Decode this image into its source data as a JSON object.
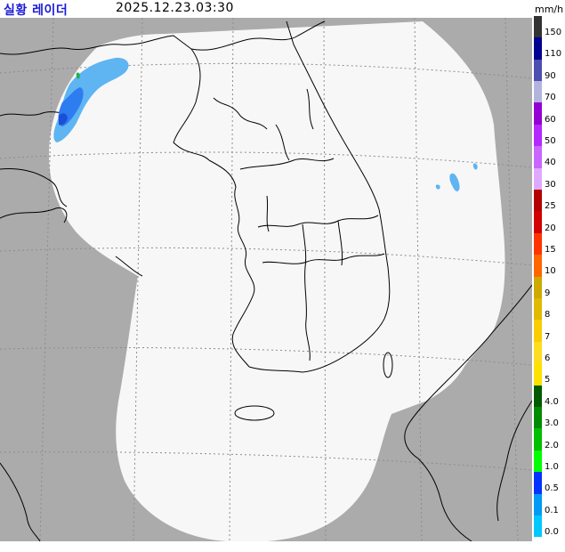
{
  "header": {
    "title": "실황 레이더",
    "timestamp": "2025.12.23.03:30",
    "unit": "mm/h"
  },
  "colors": {
    "outside_coverage": "#ababab",
    "coverage": "#f7f7f7",
    "rain_light": "#2d7cf0",
    "rain_very_light": "#5fb4f2",
    "rain_moderate": "#1a4fd6",
    "title": "#1b1bd6"
  },
  "legend": [
    {
      "label": "150",
      "color": "#333333"
    },
    {
      "label": "110",
      "color": "#000090"
    },
    {
      "label": "90",
      "color": "#4c4eb1"
    },
    {
      "label": "70",
      "color": "#b3b4de"
    },
    {
      "label": "60",
      "color": "#9400d3"
    },
    {
      "label": "50",
      "color": "#b329ff"
    },
    {
      "label": "40",
      "color": "#c966ff"
    },
    {
      "label": "30",
      "color": "#dfa9ff"
    },
    {
      "label": "25",
      "color": "#b30000"
    },
    {
      "label": "20",
      "color": "#d20000"
    },
    {
      "label": "15",
      "color": "#ff3300"
    },
    {
      "label": "10",
      "color": "#ff6600"
    },
    {
      "label": "9",
      "color": "#ccaa00"
    },
    {
      "label": "8",
      "color": "#e0b900"
    },
    {
      "label": "7",
      "color": "#f9cd00"
    },
    {
      "label": "6",
      "color": "#ffdc1f"
    },
    {
      "label": "5",
      "color": "#ffe100"
    },
    {
      "label": "4.0",
      "color": "#005a00"
    },
    {
      "label": "3.0",
      "color": "#008c00"
    },
    {
      "label": "2.0",
      "color": "#00be00"
    },
    {
      "label": "1.0",
      "color": "#00ff00"
    },
    {
      "label": "0.5",
      "color": "#0033ff"
    },
    {
      "label": "0.1",
      "color": "#009bf5"
    },
    {
      "label": "0.0",
      "color": "#00c8ff"
    }
  ]
}
